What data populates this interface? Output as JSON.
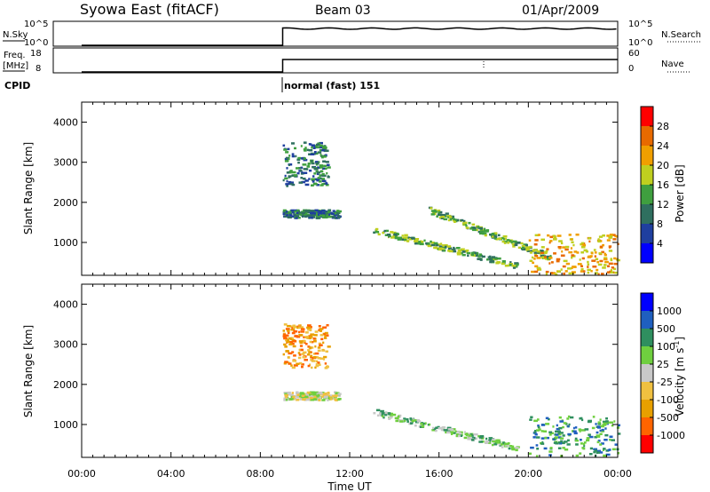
{
  "header": {
    "title": "Syowa East (fitACF)",
    "beam": "Beam 03",
    "date": "01/Apr/2009"
  },
  "strips": {
    "nsky_label": "N.Sky",
    "nsky_ticks": [
      "10^5",
      "10^0"
    ],
    "nsearch_label": "N.Search",
    "nsearch_ticks": [
      "10^5",
      "10^0"
    ],
    "freq_label_line1": "Freq.",
    "freq_label_line2": "[MHz]",
    "freq_ticks": [
      "18",
      "8"
    ],
    "nave_label": "Nave",
    "nave_ticks": [
      "60",
      "0"
    ],
    "cpid_label": "CPID",
    "cpid_text": "normal (fast) 151"
  },
  "colors": {
    "power_scale": [
      "#0000ff",
      "#1f3f9f",
      "#2f6f5f",
      "#3f9f3f",
      "#bfcf1f",
      "#f09f00",
      "#e86a00",
      "#ff0000"
    ],
    "velocity_scale": [
      "#ff0000",
      "#ff6400",
      "#e8a000",
      "#f0c040",
      "#c8c8c8",
      "#6fcf3f",
      "#2f8f5f",
      "#1f5fbf",
      "#0000ff"
    ]
  },
  "chart_data": [
    {
      "type": "heatmap",
      "title": "",
      "xlabel": "",
      "ylabel": "Slant Range [km]",
      "xlim": [
        "00:00",
        "24:00"
      ],
      "ylim": [
        180,
        4500
      ],
      "yticks": [
        "4000",
        "3000",
        "2000",
        "1000"
      ],
      "colorbar_label": "Power [dB]",
      "colorbar_ticks": [
        "28",
        "24",
        "20",
        "16",
        "12",
        "8",
        "4"
      ],
      "data_start": "09:00",
      "features": [
        {
          "name": "Far range scatter",
          "start": "09:00",
          "end": "11:00",
          "range_km": [
            2400,
            3500
          ],
          "power_db": 6
        },
        {
          "name": "Range band",
          "start": "09:00",
          "end": "11:30",
          "range_km": [
            1600,
            1800
          ],
          "power_db": 6
        },
        {
          "name": "Descending band",
          "start": "13:00",
          "end": "19:30",
          "range_km": [
            400,
            1300
          ],
          "power_db": 12
        },
        {
          "name": "Upper descending band",
          "start": "15:30",
          "end": "21:00",
          "range_km": [
            600,
            1800
          ],
          "power_db": 10
        },
        {
          "name": "Late scatter",
          "start": "20:00",
          "end": "24:00",
          "range_km": [
            200,
            1200
          ],
          "power_db": 20
        }
      ]
    },
    {
      "type": "heatmap",
      "title": "",
      "xlabel": "Time UT",
      "ylabel": "Slant Range [km]",
      "xlim": [
        "00:00",
        "24:00"
      ],
      "ylim": [
        180,
        4500
      ],
      "xticks": [
        "00:00",
        "04:00",
        "08:00",
        "12:00",
        "16:00",
        "20:00",
        "00:00"
      ],
      "yticks": [
        "4000",
        "3000",
        "2000",
        "1000"
      ],
      "colorbar_label": "Velocity [m s^-1]",
      "colorbar_ticks": [
        "1000",
        "500",
        "100",
        "25",
        "-25",
        "-100",
        "-500",
        "-1000"
      ],
      "data_start": "09:00",
      "features": [
        {
          "name": "Far range scatter",
          "start": "09:00",
          "end": "11:00",
          "range_km": [
            2400,
            3500
          ],
          "velocity_ms": -200
        },
        {
          "name": "Range band",
          "start": "09:00",
          "end": "11:30",
          "range_km": [
            1600,
            1800
          ],
          "velocity_ms": 0
        },
        {
          "name": "Descending band",
          "start": "13:00",
          "end": "19:30",
          "range_km": [
            400,
            1300
          ],
          "velocity_ms": 60
        },
        {
          "name": "Late scatter",
          "start": "20:00",
          "end": "24:00",
          "range_km": [
            200,
            1200
          ],
          "velocity_ms": 150
        }
      ]
    }
  ]
}
